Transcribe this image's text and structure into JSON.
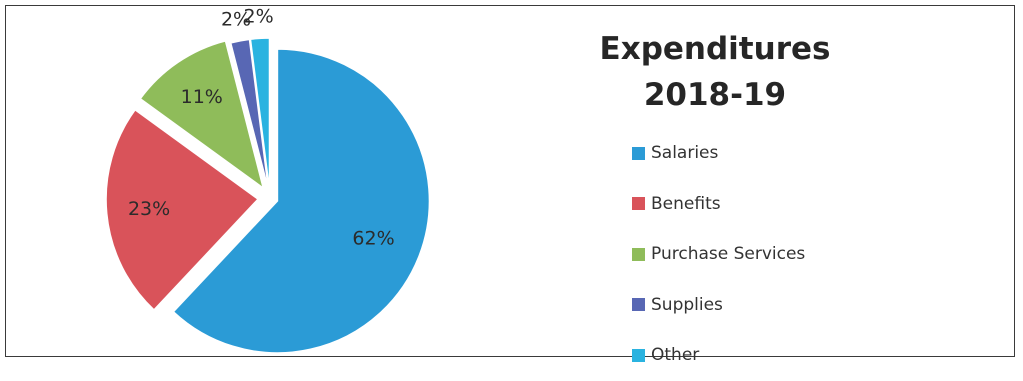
{
  "chart_data": {
    "type": "pie",
    "title": [
      "Expenditures",
      "2018-19"
    ],
    "categories": [
      "Salaries",
      "Benefits",
      "Purchase Services",
      "Supplies",
      "Other"
    ],
    "values": [
      62,
      23,
      11,
      2,
      2
    ],
    "value_labels": [
      "62%",
      "23%",
      "11%",
      "2%",
      "2%"
    ],
    "colors": [
      "#2b9bd6",
      "#d9535a",
      "#8fbc5a",
      "#5867b4",
      "#2ab3e0"
    ],
    "exploded": true,
    "legend_position": "right"
  }
}
